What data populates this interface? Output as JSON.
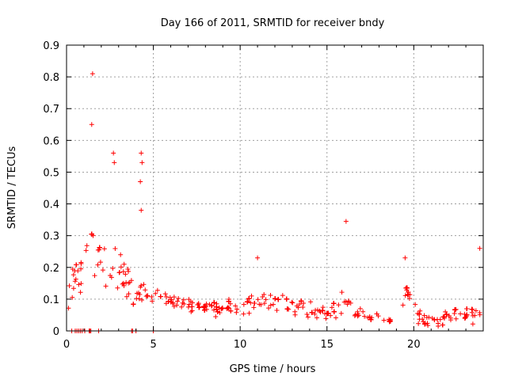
{
  "chart_data": {
    "type": "scatter",
    "title": "Day 166 of 2011, SRMTID for receiver bndy",
    "xlabel": "GPS time / hours",
    "ylabel": "SRMTID / TECUs",
    "xlim": [
      0,
      24
    ],
    "ylim": [
      0,
      0.9
    ],
    "x_ticks": [
      0,
      5,
      10,
      15,
      20
    ],
    "x_tick_labels": [
      "0",
      "5",
      "10",
      "15",
      "20"
    ],
    "y_ticks": [
      0,
      0.1,
      0.2,
      0.3,
      0.4,
      0.5,
      0.6,
      0.7,
      0.8,
      0.9
    ],
    "y_tick_labels": [
      "0",
      "0.1",
      "0.2",
      "0.3",
      "0.4",
      "0.5",
      "0.6",
      "0.7",
      "0.8",
      "0.9"
    ],
    "grid": true,
    "marker": "+",
    "series_color": "#ff0000",
    "notable_points": [
      {
        "x": 1.5,
        "y": 0.81
      },
      {
        "x": 1.45,
        "y": 0.65
      },
      {
        "x": 2.7,
        "y": 0.56
      },
      {
        "x": 4.3,
        "y": 0.56
      },
      {
        "x": 4.35,
        "y": 0.53
      },
      {
        "x": 2.75,
        "y": 0.53
      },
      {
        "x": 4.25,
        "y": 0.47
      },
      {
        "x": 4.3,
        "y": 0.38
      },
      {
        "x": 16.1,
        "y": 0.345
      },
      {
        "x": 23.8,
        "y": 0.26
      },
      {
        "x": 11.0,
        "y": 0.23
      },
      {
        "x": 19.5,
        "y": 0.23
      }
    ],
    "envelope": {
      "hours": [
        0,
        0.5,
        1,
        1.5,
        2,
        2.5,
        3,
        3.5,
        4,
        4.5,
        5,
        5.5,
        6,
        7,
        8,
        9,
        10,
        11,
        12,
        13,
        14,
        15,
        15.5,
        16,
        16.5,
        17,
        18,
        18.5,
        19,
        19.5,
        20,
        20.5,
        21,
        22,
        23,
        24
      ],
      "center": [
        0.08,
        0.18,
        0.22,
        0.3,
        0.24,
        0.18,
        0.2,
        0.16,
        0.13,
        0.13,
        0.12,
        0.1,
        0.09,
        0.08,
        0.07,
        0.07,
        0.08,
        0.1,
        0.08,
        0.07,
        0.07,
        0.06,
        0.07,
        0.1,
        0.07,
        0.05,
        0.04,
        0.03,
        0.02,
        0.12,
        0.07,
        0.04,
        0.03,
        0.04,
        0.05,
        0.06
      ],
      "spread": [
        0.06,
        0.12,
        0.15,
        0.16,
        0.13,
        0.1,
        0.1,
        0.08,
        0.07,
        0.06,
        0.05,
        0.04,
        0.035,
        0.03,
        0.03,
        0.035,
        0.04,
        0.05,
        0.045,
        0.04,
        0.04,
        0.04,
        0.045,
        0.06,
        0.045,
        0.035,
        0.03,
        0.025,
        0.02,
        0.06,
        0.045,
        0.03,
        0.025,
        0.03,
        0.035,
        0.04
      ]
    },
    "zero_points_x": [
      0.3,
      0.5,
      0.6,
      0.7,
      0.8,
      0.9,
      1.05,
      1.3,
      1.35,
      1.4,
      1.85,
      3.75,
      3.8,
      4.0,
      5.0
    ]
  }
}
